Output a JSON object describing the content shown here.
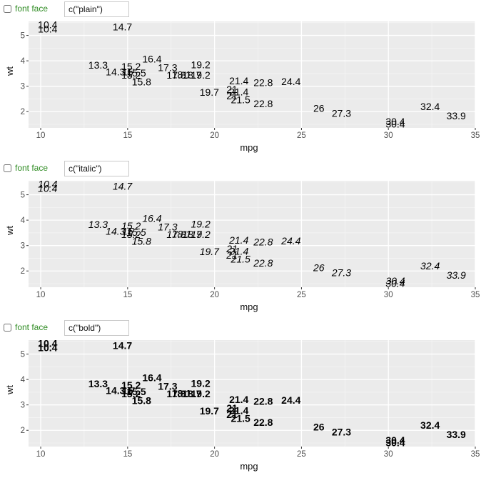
{
  "panels": [
    {
      "checkbox_label": "font face",
      "face_value": "c(\"plain\")",
      "font_style": "normal",
      "font_weight": "normal"
    },
    {
      "checkbox_label": "font face",
      "face_value": "c(\"italic\")",
      "font_style": "italic",
      "font_weight": "normal"
    },
    {
      "checkbox_label": "font face",
      "face_value": "c(\"bold\")",
      "font_style": "normal",
      "font_weight": "bold"
    }
  ],
  "colors": {
    "panel_bg": "#ebebeb",
    "grid_major": "#ffffff",
    "grid_minor": "#f5f5f5",
    "checkbox_label": "#2e8b22"
  },
  "chart_data": [
    {
      "type": "scatter",
      "title": "",
      "xlabel": "mpg",
      "ylabel": "wt",
      "xlim": [
        9.3,
        35.0
      ],
      "ylim": [
        1.36,
        5.55
      ],
      "x_ticks": [
        10,
        15,
        20,
        25,
        30,
        35
      ],
      "y_ticks": [
        2,
        3,
        4,
        5
      ],
      "points": [
        {
          "x": 21.0,
          "y": 2.62,
          "label": "21"
        },
        {
          "x": 21.0,
          "y": 2.875,
          "label": "21"
        },
        {
          "x": 22.8,
          "y": 2.32,
          "label": "22.8"
        },
        {
          "x": 21.4,
          "y": 3.215,
          "label": "21.4"
        },
        {
          "x": 18.7,
          "y": 3.44,
          "label": "18.7"
        },
        {
          "x": 18.1,
          "y": 3.46,
          "label": "18.1"
        },
        {
          "x": 14.3,
          "y": 3.57,
          "label": "14.3"
        },
        {
          "x": 24.4,
          "y": 3.19,
          "label": "24.4"
        },
        {
          "x": 22.8,
          "y": 3.15,
          "label": "22.8"
        },
        {
          "x": 19.2,
          "y": 3.44,
          "label": "19.2"
        },
        {
          "x": 17.8,
          "y": 3.44,
          "label": "17.8"
        },
        {
          "x": 16.4,
          "y": 4.07,
          "label": "16.4"
        },
        {
          "x": 17.3,
          "y": 3.73,
          "label": "17.3"
        },
        {
          "x": 15.2,
          "y": 3.78,
          "label": "15.2"
        },
        {
          "x": 10.4,
          "y": 5.25,
          "label": "10.4"
        },
        {
          "x": 10.4,
          "y": 5.424,
          "label": "10.4"
        },
        {
          "x": 14.7,
          "y": 5.345,
          "label": "14.7"
        },
        {
          "x": 32.4,
          "y": 2.2,
          "label": "32.4"
        },
        {
          "x": 30.4,
          "y": 1.615,
          "label": "30.4"
        },
        {
          "x": 33.9,
          "y": 1.835,
          "label": "33.9"
        },
        {
          "x": 21.5,
          "y": 2.465,
          "label": "21.5"
        },
        {
          "x": 15.5,
          "y": 3.52,
          "label": "15.5"
        },
        {
          "x": 15.2,
          "y": 3.435,
          "label": "15.2"
        },
        {
          "x": 13.3,
          "y": 3.84,
          "label": "13.3"
        },
        {
          "x": 19.2,
          "y": 3.845,
          "label": "19.2"
        },
        {
          "x": 27.3,
          "y": 1.935,
          "label": "27.3"
        },
        {
          "x": 26.0,
          "y": 2.14,
          "label": "26"
        },
        {
          "x": 30.4,
          "y": 1.513,
          "label": "30.4"
        },
        {
          "x": 15.8,
          "y": 3.17,
          "label": "15.8"
        },
        {
          "x": 19.7,
          "y": 2.77,
          "label": "19.7"
        },
        {
          "x": 15.0,
          "y": 3.57,
          "label": "15"
        },
        {
          "x": 21.4,
          "y": 2.78,
          "label": "21.4"
        }
      ]
    }
  ]
}
